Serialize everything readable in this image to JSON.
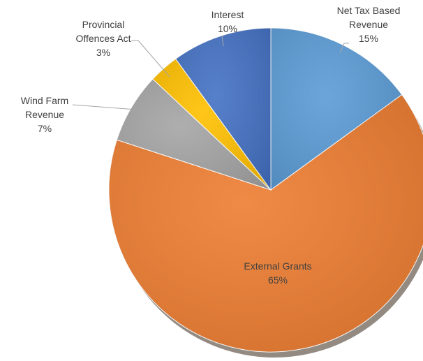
{
  "chart_data": {
    "type": "pie",
    "title": "",
    "start_angle_deg": 0,
    "direction": "clockwise",
    "shadow": true,
    "slices": [
      {
        "name": "Net Tax Based Revenue",
        "label_lines": [
          "Net Tax Based",
          "Revenue"
        ],
        "value": 15,
        "percent_label": "15%",
        "color": "#5B9BD5"
      },
      {
        "name": "External Grants",
        "label_lines": [
          "External Grants"
        ],
        "value": 65,
        "percent_label": "65%",
        "color": "#ED7D31"
      },
      {
        "name": "Wind Farm Revenue",
        "label_lines": [
          "Wind Farm",
          "Revenue"
        ],
        "value": 7,
        "percent_label": "7%",
        "color": "#A5A5A5"
      },
      {
        "name": "Provincial Offences Act",
        "label_lines": [
          "Provincial",
          "Offences Act"
        ],
        "value": 3,
        "percent_label": "3%",
        "color": "#FFC000"
      },
      {
        "name": "Interest",
        "label_lines": [
          "Interest"
        ],
        "value": 10,
        "percent_label": "10%",
        "color": "#4472C4"
      }
    ]
  }
}
